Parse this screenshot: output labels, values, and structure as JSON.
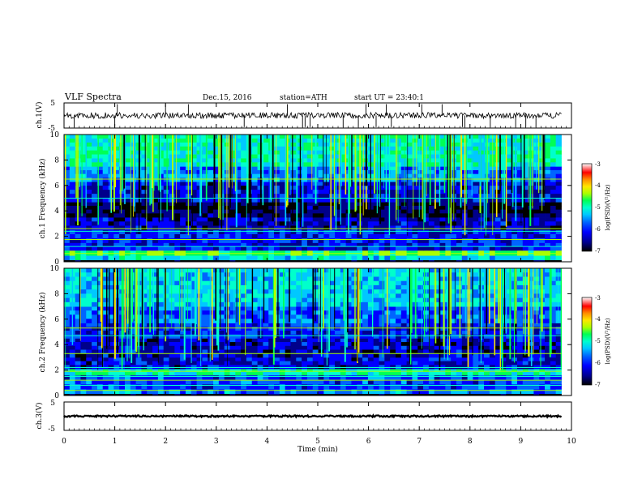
{
  "header": {
    "title": "VLF Spectra",
    "date": "Dec.15, 2016",
    "station": "station=ATH",
    "start": "start UT = 23:40:1"
  },
  "colors": {
    "palette": [
      "#000000",
      "#00008b",
      "#0000ff",
      "#0064ff",
      "#00c8ff",
      "#00ffcc",
      "#00ff55",
      "#aaff00",
      "#ffe600",
      "#ff8c00",
      "#ff0000",
      "#ffffff"
    ]
  },
  "chart_data": [
    {
      "type": "line",
      "panel": "ch1-waveform",
      "ylabel": "ch.1(V)",
      "yticks": [
        "5",
        "-5"
      ],
      "ylim": [
        -5,
        5
      ],
      "xlim": [
        0,
        10
      ],
      "data_end_min": 9.8,
      "baseline_v": 0.0,
      "noise_amplitude_v": 1.2,
      "spike_times_min": [
        0.2,
        1.0,
        1.05,
        2.0,
        2.45,
        3.55,
        4.4,
        4.7,
        4.75,
        4.85,
        5.5,
        5.8,
        5.95,
        6.15,
        6.35,
        6.45,
        7.05,
        7.45,
        7.85,
        7.9,
        8.4,
        8.9,
        9.1,
        9.3
      ]
    },
    {
      "type": "heatmap",
      "panel": "ch1-spectrogram",
      "ylabel": "ch.1 Frequency (kHz)",
      "yticks": [
        "0",
        "2",
        "4",
        "6",
        "8",
        "10"
      ],
      "ylim": [
        0,
        10
      ],
      "xlim": [
        0,
        10
      ],
      "data_end_min": 9.8,
      "colorbar": {
        "label": "log(PSD)(V²/Hz)",
        "ticks": [
          "-3",
          "-4",
          "-5",
          "-6",
          "-7"
        ],
        "range": [
          -7,
          -3
        ]
      },
      "bands_khz": [
        {
          "from": 0.0,
          "to": 0.15,
          "level": -7.0
        },
        {
          "from": 0.15,
          "to": 0.5,
          "level": -5.2
        },
        {
          "from": 0.5,
          "to": 0.9,
          "level": -4.6
        },
        {
          "from": 0.9,
          "to": 1.5,
          "level": -6.1
        },
        {
          "from": 1.5,
          "to": 2.5,
          "level": -6.0
        },
        {
          "from": 2.5,
          "to": 3.5,
          "level": -6.3
        },
        {
          "from": 3.5,
          "to": 4.7,
          "level": -6.7
        },
        {
          "from": 4.7,
          "to": 6.3,
          "level": -6.2
        },
        {
          "from": 6.3,
          "to": 7.5,
          "level": -5.6
        },
        {
          "from": 7.5,
          "to": 10.0,
          "level": -5.0
        }
      ],
      "lines_khz": [
        0.65,
        1.2,
        1.75,
        2.4,
        2.6,
        5.0,
        6.5
      ]
    },
    {
      "type": "heatmap",
      "panel": "ch2-spectrogram",
      "ylabel": "ch.2 Frequency (kHz)",
      "yticks": [
        "0",
        "2",
        "4",
        "6",
        "8",
        "10"
      ],
      "ylim": [
        0,
        10
      ],
      "xlim": [
        0,
        10
      ],
      "data_end_min": 9.8,
      "colorbar": {
        "label": "log(PSD)(V²/Hz)",
        "ticks": [
          "-3",
          "-4",
          "-5",
          "-6",
          "-7"
        ],
        "range": [
          -7,
          -3
        ]
      },
      "bands_khz": [
        {
          "from": 0.0,
          "to": 0.15,
          "level": -7.0
        },
        {
          "from": 0.15,
          "to": 0.5,
          "level": -5.6
        },
        {
          "from": 0.5,
          "to": 1.6,
          "level": -5.9
        },
        {
          "from": 1.6,
          "to": 2.1,
          "level": -5.0
        },
        {
          "from": 2.1,
          "to": 3.0,
          "level": -6.2
        },
        {
          "from": 3.0,
          "to": 4.5,
          "level": -6.3
        },
        {
          "from": 4.5,
          "to": 5.7,
          "level": -6.0
        },
        {
          "from": 5.7,
          "to": 7.0,
          "level": -5.8
        },
        {
          "from": 7.0,
          "to": 10.0,
          "level": -5.3
        }
      ],
      "lines_khz": [
        0.4,
        0.8,
        1.2,
        1.5,
        1.9,
        2.2,
        3.3,
        4.7,
        5.3
      ]
    },
    {
      "type": "line",
      "panel": "ch3-waveform",
      "ylabel": "ch.3(V)",
      "yticks": [
        "5",
        "-5"
      ],
      "ylim": [
        -5,
        5
      ],
      "xlim": [
        0,
        10
      ],
      "data_end_min": 9.8,
      "baseline_v": 0.0,
      "noise_amplitude_v": 0.3
    }
  ],
  "xaxis": {
    "label": "Time (min)",
    "ticks": [
      "0",
      "1",
      "2",
      "3",
      "4",
      "5",
      "6",
      "7",
      "8",
      "9",
      "10"
    ],
    "range": [
      0,
      10
    ]
  }
}
